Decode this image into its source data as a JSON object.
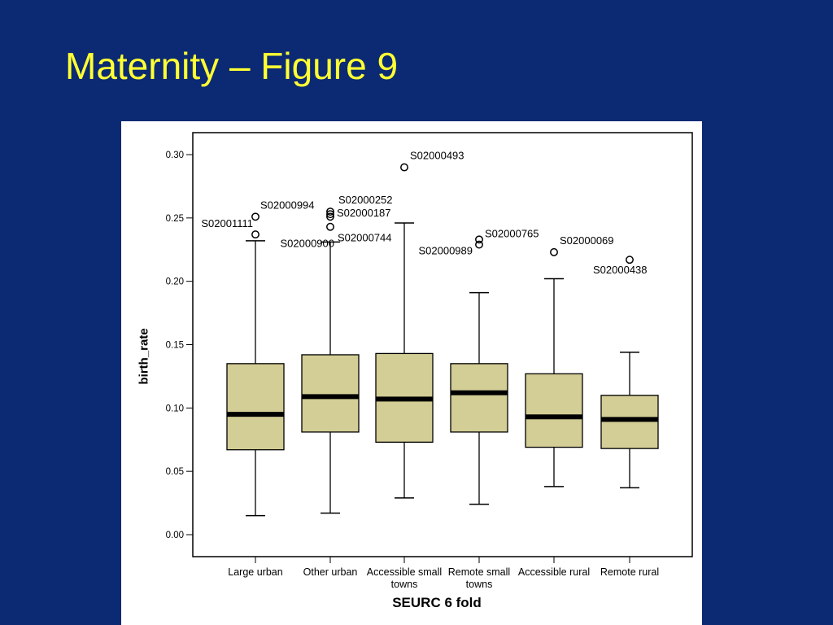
{
  "slide": {
    "title": "Maternity – Figure 9"
  },
  "chart_data": {
    "type": "box",
    "xlabel": "SEURC 6 fold",
    "ylabel": "birth_rate",
    "ylim": [
      0.0,
      0.3
    ],
    "yticks": [
      "0.00",
      "0.05",
      "0.10",
      "0.15",
      "0.20",
      "0.25",
      "0.30"
    ],
    "colors": {
      "box_fill": "#d3cd96",
      "median": "#000000",
      "frame": "#000000"
    },
    "categories": [
      {
        "label": "Large urban",
        "min": 0.015,
        "q1": 0.067,
        "median": 0.095,
        "q3": 0.135,
        "max": 0.232,
        "outliers": [
          {
            "value": 0.251,
            "label": "S02000994"
          },
          {
            "value": 0.237,
            "label": "S02001111"
          }
        ]
      },
      {
        "label": "Other urban",
        "min": 0.017,
        "q1": 0.081,
        "median": 0.109,
        "q3": 0.142,
        "max": 0.231,
        "outliers": [
          {
            "value": 0.255,
            "label": "S02000252"
          },
          {
            "value": 0.253,
            "label": "S02000187"
          },
          {
            "value": 0.251,
            "label": "S02000900"
          },
          {
            "value": 0.243,
            "label": "S02000744"
          }
        ]
      },
      {
        "label": "Accessible small towns",
        "min": 0.029,
        "q1": 0.073,
        "median": 0.107,
        "q3": 0.143,
        "max": 0.246,
        "outliers": [
          {
            "value": 0.29,
            "label": "S02000493"
          }
        ]
      },
      {
        "label": "Remote small towns",
        "min": 0.024,
        "q1": 0.081,
        "median": 0.112,
        "q3": 0.135,
        "max": 0.191,
        "outliers": [
          {
            "value": 0.233,
            "label": "S02000765"
          },
          {
            "value": 0.229,
            "label": "S02000989"
          }
        ]
      },
      {
        "label": "Accessible rural",
        "min": 0.038,
        "q1": 0.069,
        "median": 0.093,
        "q3": 0.127,
        "max": 0.202,
        "outliers": [
          {
            "value": 0.223,
            "label": "S02000069"
          }
        ]
      },
      {
        "label": "Remote rural",
        "min": 0.037,
        "q1": 0.068,
        "median": 0.091,
        "q3": 0.11,
        "max": 0.144,
        "outliers": [
          {
            "value": 0.217,
            "label": "S02000438"
          }
        ]
      }
    ]
  }
}
